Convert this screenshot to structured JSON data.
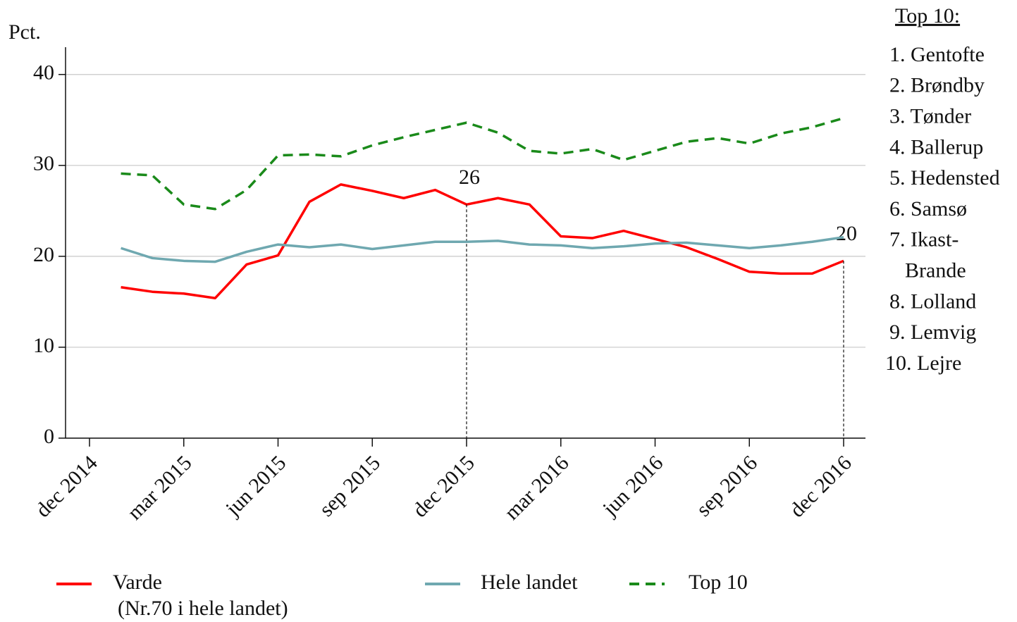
{
  "chart_data": {
    "type": "line",
    "ylabel": "Pct.",
    "x": [
      "2015-01",
      "2015-02",
      "2015-03",
      "2015-04",
      "2015-05",
      "2015-06",
      "2015-07",
      "2015-08",
      "2015-09",
      "2015-10",
      "2015-11",
      "2015-12",
      "2016-01",
      "2016-02",
      "2016-03",
      "2016-04",
      "2016-05",
      "2016-06",
      "2016-07",
      "2016-08",
      "2016-09",
      "2016-10",
      "2016-11",
      "2016-12"
    ],
    "series": [
      {
        "name": "Varde",
        "color": "#ff0000",
        "dash": "solid",
        "values": [
          16.6,
          16.1,
          15.9,
          15.4,
          19.1,
          20.1,
          26.0,
          27.9,
          27.2,
          26.4,
          27.3,
          25.7,
          26.4,
          25.7,
          22.2,
          22.0,
          22.8,
          21.9,
          21.0,
          19.7,
          18.3,
          18.1,
          18.1,
          19.5
        ],
        "value_labels": [
          null,
          null,
          null,
          null,
          null,
          null,
          null,
          null,
          null,
          null,
          null,
          "26",
          null,
          null,
          null,
          null,
          null,
          null,
          null,
          null,
          null,
          null,
          null,
          "20"
        ]
      },
      {
        "name": "Hele landet",
        "color": "#6fa8b0",
        "dash": "solid",
        "values": [
          20.9,
          19.8,
          19.5,
          19.4,
          20.5,
          21.3,
          21.0,
          21.3,
          20.8,
          21.2,
          21.6,
          21.6,
          21.7,
          21.3,
          21.2,
          20.9,
          21.1,
          21.4,
          21.5,
          21.2,
          20.9,
          21.2,
          21.6,
          22.1
        ]
      },
      {
        "name": "Top 10",
        "color": "#1a8a1a",
        "dash": "dashed",
        "values": [
          29.1,
          28.9,
          25.7,
          25.2,
          27.3,
          31.1,
          31.2,
          31.0,
          32.2,
          33.1,
          33.9,
          34.7,
          33.6,
          31.6,
          31.3,
          31.8,
          30.6,
          31.6,
          32.6,
          33.0,
          32.4,
          33.5,
          34.2,
          35.2
        ]
      }
    ],
    "legend_note": "(Nr.70 i hele landet)",
    "xlim": [
      "2014-12",
      "2016-12"
    ],
    "xticks": [
      {
        "value": "2014-12",
        "label": "dec 2014"
      },
      {
        "value": "2015-03",
        "label": "mar 2015"
      },
      {
        "value": "2015-06",
        "label": "jun 2015"
      },
      {
        "value": "2015-09",
        "label": "sep 2015"
      },
      {
        "value": "2015-12",
        "label": "dec 2015"
      },
      {
        "value": "2016-03",
        "label": "mar 2016"
      },
      {
        "value": "2016-06",
        "label": "jun 2016"
      },
      {
        "value": "2016-09",
        "label": "sep 2016"
      },
      {
        "value": "2016-12",
        "label": "dec 2016"
      }
    ],
    "ylim": [
      0,
      43
    ],
    "yticks": [
      0,
      10,
      20,
      30,
      40
    ],
    "grid": true,
    "side_list": {
      "title": "Top 10:",
      "items": [
        "1. Gentofte",
        "2. Brøndby",
        "3. Tønder",
        "4. Ballerup",
        "5. Hedensted",
        "6. Samsø",
        "7. Ikast-",
        "Brande",
        "8. Lolland",
        "9. Lemvig",
        "10. Lejre"
      ]
    }
  }
}
